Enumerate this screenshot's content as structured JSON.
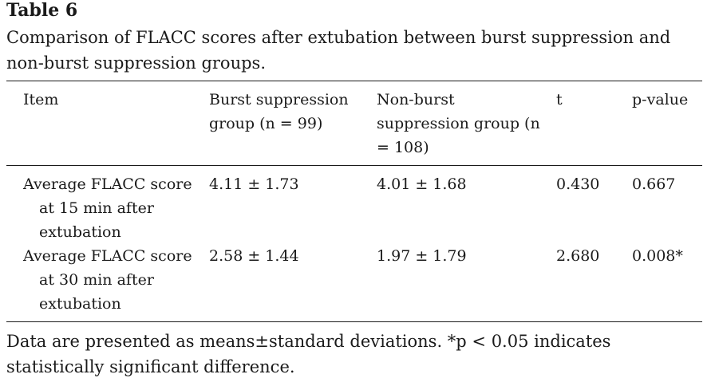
{
  "table": {
    "label": "Table 6",
    "caption": "Comparison of FLACC scores after extubation between burst suppression and non-burst suppression groups.",
    "columns": [
      "Item",
      "Burst suppression group (n = 99)",
      "Non-burst suppression group (n = 108)",
      "t",
      "p-value"
    ],
    "rows": [
      {
        "item": "Average FLACC score at 15 min after extubation",
        "burst": "4.11 ± 1.73",
        "non_burst": "4.01 ± 1.68",
        "t": "0.430",
        "p": "0.667"
      },
      {
        "item": "Average FLACC score at 30 min after extubation",
        "burst": "2.58 ± 1.44",
        "non_burst": "1.97 ± 1.79",
        "t": "2.680",
        "p": "0.008*"
      }
    ],
    "footnote": "Data are presented as means±standard deviations. *p < 0.05 indicates statistically significant difference."
  }
}
